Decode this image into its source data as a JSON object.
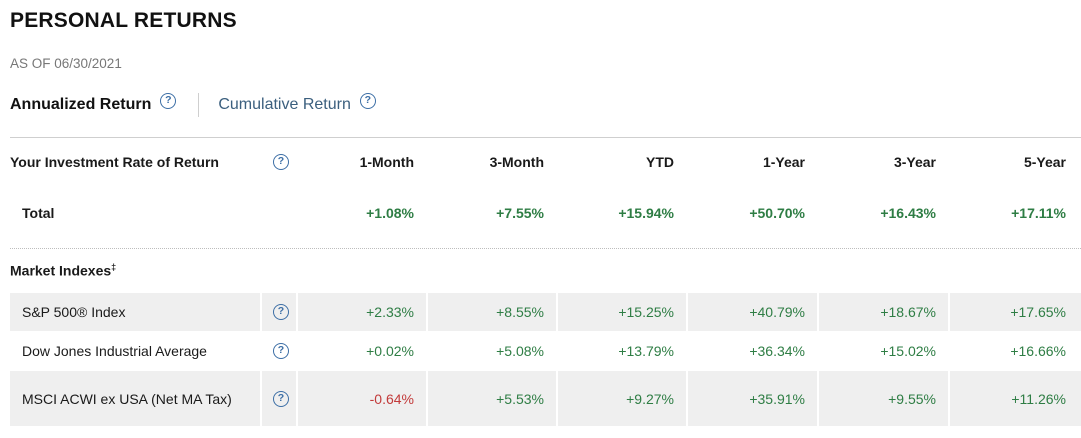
{
  "header": {
    "title": "PERSONAL RETURNS",
    "as_of": "AS OF 06/30/2021"
  },
  "tabs": [
    {
      "label": "Annualized Return",
      "active": true
    },
    {
      "label": "Cumulative Return",
      "active": false
    }
  ],
  "columns": [
    "1-Month",
    "3-Month",
    "YTD",
    "1-Year",
    "3-Year",
    "5-Year"
  ],
  "investment": {
    "label": "Your Investment Rate of Return",
    "total_label": "Total",
    "total_values": [
      "+1.08%",
      "+7.55%",
      "+15.94%",
      "+50.70%",
      "+16.43%",
      "+17.11%"
    ]
  },
  "market_indexes": {
    "label": "Market Indexes",
    "label_sup": "‡",
    "rows": [
      {
        "name": "S&P 500® Index",
        "values": [
          "+2.33%",
          "+8.55%",
          "+15.25%",
          "+40.79%",
          "+18.67%",
          "+17.65%"
        ]
      },
      {
        "name": "Dow Jones Industrial Average",
        "values": [
          "+0.02%",
          "+5.08%",
          "+13.79%",
          "+36.34%",
          "+15.02%",
          "+16.66%"
        ]
      },
      {
        "name": "MSCI ACWI ex USA (Net MA Tax)",
        "values": [
          "-0.64%",
          "+5.53%",
          "+9.27%",
          "+35.91%",
          "+9.55%",
          "+11.26%"
        ]
      }
    ]
  },
  "help_icon": "question-circle-icon",
  "colors": {
    "positive": "#2e7d44",
    "negative": "#c23a3a",
    "link": "#3b5f7e",
    "row_shade": "#efefef"
  }
}
